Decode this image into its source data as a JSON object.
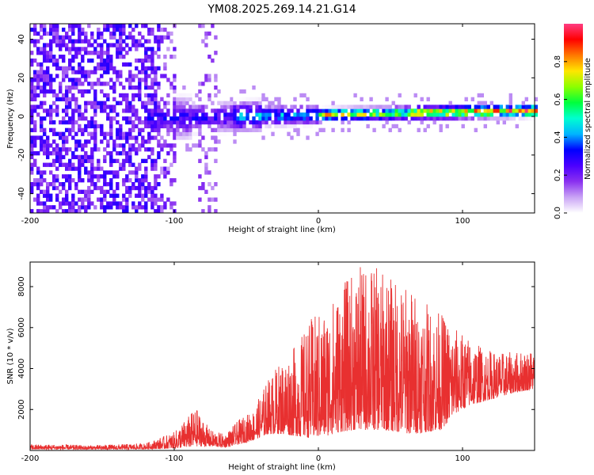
{
  "chart_data": [
    {
      "type": "heatmap",
      "title": "YM08.2025.269.14.21.G14",
      "xlabel": "Height of straight line (km)",
      "ylabel": "Frequency (Hz)",
      "xlim": [
        -200,
        150
      ],
      "ylim": [
        -50,
        48
      ],
      "xticks": [
        "-200",
        "-100",
        "0",
        "100"
      ],
      "yticks": [
        "-40",
        "-20",
        "0",
        "20",
        "40"
      ],
      "colorbar": {
        "label": "Normalized spectral amplitude",
        "range": [
          0,
          1
        ],
        "ticks": [
          "0.0",
          "0.2",
          "0.4",
          "0.6",
          "0.8"
        ]
      },
      "description_data": {
        "noise_region_km": [
          -200,
          -110
        ],
        "secondary_noise_column_km": -78,
        "signal_band_center_hz": 0,
        "signal_band_end_center_hz": 2,
        "peak_amplitude_region_km": [
          20,
          150
        ]
      }
    },
    {
      "type": "line",
      "xlabel": "Height of straight line (km)",
      "ylabel": "SNR (10 * v/v)",
      "xlim": [
        -200,
        150
      ],
      "ylim": [
        0,
        9200
      ],
      "xticks": [
        "-200",
        "-100",
        "0",
        "100"
      ],
      "yticks": [
        "2000",
        "4000",
        "6000",
        "8000"
      ],
      "color": "#e83030",
      "series": [
        {
          "name": "SNR",
          "x": [
            -200,
            -180,
            -160,
            -140,
            -120,
            -100,
            -85,
            -75,
            -65,
            -55,
            -45,
            -35,
            -25,
            -15,
            -5,
            5,
            15,
            25,
            35,
            45,
            55,
            65,
            75,
            85,
            95,
            105,
            115,
            125,
            135,
            150
          ],
          "envelope_low": [
            50,
            50,
            50,
            50,
            60,
            100,
            200,
            200,
            150,
            300,
            500,
            800,
            800,
            700,
            600,
            700,
            900,
            1000,
            1000,
            1000,
            900,
            800,
            900,
            1000,
            1800,
            2200,
            2400,
            2600,
            2800,
            3000
          ],
          "envelope_high": [
            300,
            300,
            250,
            300,
            350,
            900,
            2100,
            1000,
            800,
            1500,
            2000,
            3500,
            4500,
            5200,
            6500,
            7000,
            8000,
            8800,
            9200,
            8700,
            8300,
            8000,
            7200,
            6800,
            6000,
            5500,
            5000,
            4800,
            4800,
            5000
          ]
        }
      ]
    }
  ],
  "colors": {
    "colorbar_stops": [
      "#ffffff",
      "#c9a3f5",
      "#8a30f0",
      "#4b00ff",
      "#0000ff",
      "#00b4ff",
      "#00ffd0",
      "#00ff3c",
      "#8cff00",
      "#ffe600",
      "#ff7800",
      "#ff0000",
      "#ff3c82"
    ],
    "line": "#e83030"
  }
}
